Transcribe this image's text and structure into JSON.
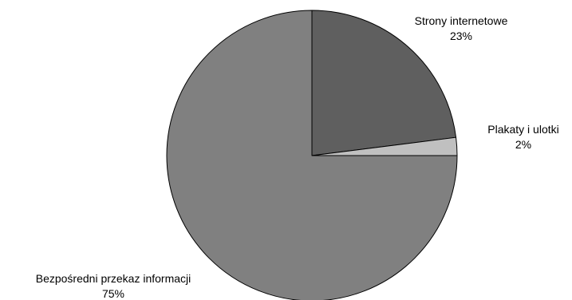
{
  "chart_data": {
    "type": "pie",
    "title": "",
    "slices": [
      {
        "label": "Strony internetowe",
        "value": 23,
        "value_label": "23%",
        "color": "#5f5f5f"
      },
      {
        "label": "Plakaty i ulotki",
        "value": 2,
        "value_label": "2%",
        "color": "#c0c0c0"
      },
      {
        "label": "Bezpośredni przekaz informacji",
        "value": 75,
        "value_label": "75%",
        "color": "#808080"
      }
    ],
    "start_angle": "12 o'clock",
    "direction": "clockwise",
    "legend": "none",
    "outline_color": "#000000"
  }
}
